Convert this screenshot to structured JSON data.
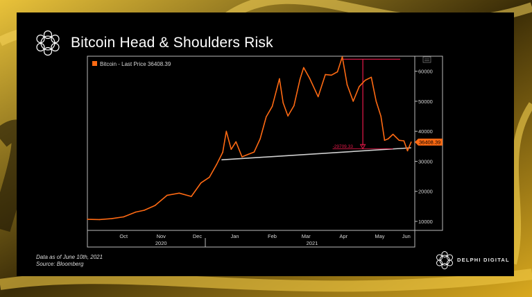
{
  "slide": {
    "title": "Bitcoin Head & Shoulders Risk",
    "footnote_date": "Data as of June 10th, 2021",
    "footnote_source": "Source: Bloomberg",
    "brand": "DELPHI DIGITAL"
  },
  "colors": {
    "price_line": "#ff6a13",
    "neckline": "#cfcfcf",
    "annotation": "#e8194a",
    "background": "#000000",
    "axis_text": "#d8d8d8",
    "brand_gold": "#c9a227"
  },
  "icons": [
    "delphi-logo-icon",
    "chart-menu-icon"
  ],
  "chart_data": {
    "type": "line",
    "title": "",
    "legend": "Bitcoin - Last Price 36408.39",
    "last_value_label": "36408.39",
    "ylim": [
      7000,
      65000
    ],
    "yticks": [
      10000,
      20000,
      30000,
      40000,
      50000,
      60000
    ],
    "ytick_labels": [
      "10000",
      "20000",
      "30000",
      "40000",
      "50000",
      "60000"
    ],
    "month_labels": [
      "Oct",
      "Nov",
      "Dec",
      "Jan",
      "Feb",
      "Mar",
      "Apr",
      "May",
      "Jun"
    ],
    "year_labels": [
      "2020",
      "2021"
    ],
    "grid": false,
    "legend_position": "top-left",
    "series": [
      {
        "name": "Bitcoin",
        "x": [
          "2020-09-15",
          "2020-09-25",
          "2020-10-05",
          "2020-10-15",
          "2020-10-25",
          "2020-11-01",
          "2020-11-10",
          "2020-11-20",
          "2020-11-30",
          "2020-12-10",
          "2020-12-18",
          "2020-12-25",
          "2020-12-31",
          "2021-01-05",
          "2021-01-08",
          "2021-01-12",
          "2021-01-16",
          "2021-01-21",
          "2021-01-26",
          "2021-01-31",
          "2021-02-05",
          "2021-02-10",
          "2021-02-15",
          "2021-02-21",
          "2021-02-24",
          "2021-02-28",
          "2021-03-05",
          "2021-03-10",
          "2021-03-13",
          "2021-03-18",
          "2021-03-25",
          "2021-03-31",
          "2021-04-05",
          "2021-04-10",
          "2021-04-14",
          "2021-04-18",
          "2021-04-23",
          "2021-04-28",
          "2021-05-03",
          "2021-05-08",
          "2021-05-12",
          "2021-05-16",
          "2021-05-19",
          "2021-05-22",
          "2021-05-26",
          "2021-05-31",
          "2021-06-04",
          "2021-06-07",
          "2021-06-10"
        ],
        "y": [
          10700,
          10600,
          10900,
          11500,
          13100,
          13700,
          15300,
          18700,
          19400,
          18300,
          22800,
          24700,
          29000,
          33000,
          40000,
          34000,
          36500,
          31500,
          32300,
          33100,
          37500,
          44800,
          48300,
          57500,
          49500,
          45100,
          48500,
          57300,
          61200,
          57600,
          51500,
          58900,
          58700,
          59800,
          64800,
          55500,
          50000,
          54900,
          57000,
          58000,
          50000,
          45000,
          37000,
          37500,
          39000,
          37000,
          36800,
          33500,
          36408
        ]
      }
    ],
    "annotations": {
      "neckline": {
        "from": [
          "2021-01-04",
          30500
        ],
        "to": [
          "2021-06-10",
          34500
        ]
      },
      "top_line": {
        "from": [
          "2021-04-14",
          64000
        ],
        "to": [
          "2021-06-01",
          64000
        ]
      },
      "measured_move_label": "-29709.33",
      "measured_move": {
        "x": "2021-05-01",
        "from": 64000,
        "to": 34200
      }
    }
  }
}
